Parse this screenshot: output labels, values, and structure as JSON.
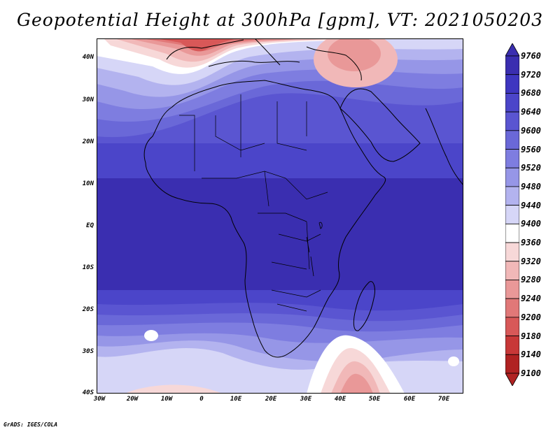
{
  "title": "Geopotential Height at 300hPa [gpm], VT: 2021050203",
  "credit": "GrADS: IGES/COLA",
  "map": {
    "lat_range": [
      -40,
      45
    ],
    "lon_range": [
      -30,
      77
    ],
    "lat_labels": [
      "40N",
      "30N",
      "20N",
      "10N",
      "EQ",
      "10S",
      "20S",
      "30S",
      "40S"
    ],
    "lon_labels": [
      "30W",
      "20W",
      "10W",
      "0",
      "10E",
      "20E",
      "30E",
      "40E",
      "50E",
      "60E",
      "70E"
    ]
  },
  "colorbar": {
    "levels": [
      "9760",
      "9720",
      "9680",
      "9640",
      "9600",
      "9560",
      "9520",
      "9480",
      "9440",
      "9400",
      "9360",
      "9320",
      "9280",
      "9240",
      "9200",
      "9180",
      "9140",
      "9100"
    ],
    "colors": [
      "#3a2eb0",
      "#3e36c0",
      "#4b45c9",
      "#5a55d1",
      "#6a68d8",
      "#7e7de0",
      "#9696e7",
      "#b3b3ef",
      "#d6d6f7",
      "#ffffff",
      "#f7d8d8",
      "#f1b8b8",
      "#e99898",
      "#e17878",
      "#d85858",
      "#c83838",
      "#b02222"
    ]
  }
}
